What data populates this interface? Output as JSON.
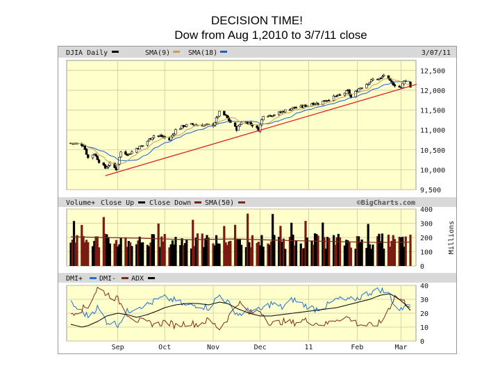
{
  "slide": {
    "title": "DECISION TIME!",
    "subtitle": "Dow from Aug 1,2010 to 3/7/11 close"
  },
  "colors": {
    "frame": "#999999",
    "header_bar": "#d9d9d9",
    "plot_bg": "#ffffcc",
    "grid": "#c9c9a0",
    "candles": "#000000",
    "candle_red": "#8b1a1a",
    "sma9": "#c8a050",
    "sma18": "#1f5fc8",
    "trendline": "#e02020",
    "vol_up": "#000000",
    "vol_down": "#7b1a12",
    "vol_sma50": "#7b2a1a",
    "dmi_plus": "#1f6fd0",
    "dmi_minus": "#7b2a1a",
    "adx": "#000000"
  },
  "chart_data": [
    {
      "type": "candlestick",
      "title": "DJIA Daily",
      "date_label": "3/07/11",
      "legend": [
        "DJIA Daily",
        "SMA(9)",
        "SMA(18)"
      ],
      "ylim": [
        9500,
        12750
      ],
      "y_ticks": [
        9500,
        10000,
        10500,
        11000,
        11500,
        12000,
        12500
      ],
      "y_tick_labels": [
        "9,500",
        "10,000",
        "10,500",
        "11,000",
        "11,500",
        "12,000",
        "12,500"
      ],
      "x_ticks": [
        "Sep",
        "Oct",
        "Nov",
        "Dec",
        "11",
        "Feb",
        "Mar"
      ],
      "x_tick_dates": [
        "2010-09-01",
        "2010-10-01",
        "2010-11-01",
        "2010-12-01",
        "2011-01-01",
        "2011-02-01",
        "2011-03-01"
      ],
      "x_range": [
        "2010-08-02",
        "2011-03-07"
      ],
      "close_series": [
        [
          "2010-08-02",
          10670
        ],
        [
          "2010-08-06",
          10650
        ],
        [
          "2010-08-10",
          10620
        ],
        [
          "2010-08-13",
          10300
        ],
        [
          "2010-08-17",
          10410
        ],
        [
          "2010-08-20",
          10210
        ],
        [
          "2010-08-24",
          10040
        ],
        [
          "2010-08-27",
          10150
        ],
        [
          "2010-08-31",
          10014
        ],
        [
          "2010-09-03",
          10450
        ],
        [
          "2010-09-08",
          10390
        ],
        [
          "2010-09-13",
          10540
        ],
        [
          "2010-09-17",
          10610
        ],
        [
          "2010-09-21",
          10760
        ],
        [
          "2010-09-24",
          10860
        ],
        [
          "2010-09-29",
          10840
        ],
        [
          "2010-10-04",
          10750
        ],
        [
          "2010-10-08",
          11000
        ],
        [
          "2010-10-13",
          11100
        ],
        [
          "2010-10-18",
          11140
        ],
        [
          "2010-10-22",
          11130
        ],
        [
          "2010-10-27",
          11120
        ],
        [
          "2010-11-01",
          11125
        ],
        [
          "2010-11-05",
          11440
        ],
        [
          "2010-11-09",
          11350
        ],
        [
          "2010-11-12",
          11190
        ],
        [
          "2010-11-16",
          11020
        ],
        [
          "2010-11-19",
          11200
        ],
        [
          "2010-11-24",
          11180
        ],
        [
          "2010-11-30",
          11000
        ],
        [
          "2010-12-03",
          11380
        ],
        [
          "2010-12-08",
          11370
        ],
        [
          "2010-12-13",
          11430
        ],
        [
          "2010-12-17",
          11490
        ],
        [
          "2010-12-22",
          11560
        ],
        [
          "2010-12-28",
          11580
        ],
        [
          "2011-01-03",
          11670
        ],
        [
          "2011-01-07",
          11670
        ],
        [
          "2011-01-12",
          11750
        ],
        [
          "2011-01-18",
          11840
        ],
        [
          "2011-01-21",
          11870
        ],
        [
          "2011-01-26",
          11980
        ],
        [
          "2011-01-28",
          11820
        ],
        [
          "2011-02-02",
          12040
        ],
        [
          "2011-02-07",
          12160
        ],
        [
          "2011-02-11",
          12270
        ],
        [
          "2011-02-16",
          12290
        ],
        [
          "2011-02-18",
          12390
        ],
        [
          "2011-02-22",
          12210
        ],
        [
          "2011-02-25",
          12130
        ],
        [
          "2011-03-01",
          12060
        ],
        [
          "2011-03-03",
          12260
        ],
        [
          "2011-03-07",
          12090
        ]
      ],
      "trendline": {
        "from": [
          "2010-08-24",
          9850
        ],
        "to": [
          "2011-03-11",
          12150
        ]
      }
    },
    {
      "type": "bar",
      "title": "Volume+",
      "legend": [
        "Close Up",
        "Close Down",
        "SMA(50)"
      ],
      "source": "©BigCharts.com",
      "units": "Millions",
      "ylim": [
        0,
        400
      ],
      "y_ticks": [
        0,
        100,
        200,
        300,
        400
      ],
      "y_tick_labels": [
        "0",
        "100",
        "200",
        "300",
        "400"
      ],
      "sma50": [
        [
          "2010-08-02",
          205
        ],
        [
          "2010-09-15",
          195
        ],
        [
          "2010-10-15",
          185
        ],
        [
          "2010-11-15",
          190
        ],
        [
          "2010-12-15",
          180
        ],
        [
          "2011-01-15",
          172
        ],
        [
          "2011-02-15",
          165
        ],
        [
          "2011-03-07",
          168
        ]
      ]
    },
    {
      "type": "line",
      "title": "DMI",
      "legend": [
        "DMI+",
        "DMI-",
        "ADX"
      ],
      "ylim": [
        0,
        40
      ],
      "y_ticks": [
        0,
        10,
        20,
        30,
        40
      ],
      "y_tick_labels": [
        "0",
        "10",
        "20",
        "30",
        "40"
      ],
      "series": [
        {
          "name": "DMI+",
          "color_key": "dmi_plus",
          "values": [
            [
              "2010-08-02",
              27
            ],
            [
              "2010-08-09",
              21
            ],
            [
              "2010-08-13",
              18
            ],
            [
              "2010-08-19",
              24
            ],
            [
              "2010-08-25",
              14
            ],
            [
              "2010-09-01",
              12
            ],
            [
              "2010-09-07",
              21
            ],
            [
              "2010-09-13",
              25
            ],
            [
              "2010-09-20",
              26
            ],
            [
              "2010-09-27",
              30
            ],
            [
              "2010-10-01",
              31
            ],
            [
              "2010-10-08",
              29
            ],
            [
              "2010-10-15",
              25
            ],
            [
              "2010-10-22",
              26
            ],
            [
              "2010-10-29",
              24
            ],
            [
              "2010-11-05",
              33
            ],
            [
              "2010-11-10",
              28
            ],
            [
              "2010-11-17",
              19
            ],
            [
              "2010-11-24",
              22
            ],
            [
              "2010-12-01",
              22
            ],
            [
              "2010-12-08",
              27
            ],
            [
              "2010-12-15",
              24
            ],
            [
              "2010-12-22",
              30
            ],
            [
              "2010-12-29",
              26
            ],
            [
              "2011-01-05",
              23
            ],
            [
              "2011-01-12",
              25
            ],
            [
              "2011-01-19",
              30
            ],
            [
              "2011-01-26",
              29
            ],
            [
              "2011-02-02",
              31
            ],
            [
              "2011-02-09",
              35
            ],
            [
              "2011-02-16",
              37
            ],
            [
              "2011-02-22",
              33
            ],
            [
              "2011-02-25",
              25
            ],
            [
              "2011-03-01",
              22
            ],
            [
              "2011-03-04",
              28
            ],
            [
              "2011-03-07",
              24
            ]
          ]
        },
        {
          "name": "DMI-",
          "color_key": "dmi_minus",
          "values": [
            [
              "2010-08-02",
              20
            ],
            [
              "2010-08-09",
              23
            ],
            [
              "2010-08-13",
              25
            ],
            [
              "2010-08-19",
              38
            ],
            [
              "2010-08-25",
              34
            ],
            [
              "2010-09-01",
              30
            ],
            [
              "2010-09-07",
              20
            ],
            [
              "2010-09-13",
              15
            ],
            [
              "2010-09-20",
              13
            ],
            [
              "2010-09-27",
              12
            ],
            [
              "2010-10-01",
              14
            ],
            [
              "2010-10-08",
              11
            ],
            [
              "2010-10-15",
              13
            ],
            [
              "2010-10-22",
              12
            ],
            [
              "2010-10-29",
              15
            ],
            [
              "2010-11-05",
              9
            ],
            [
              "2010-11-10",
              16
            ],
            [
              "2010-11-17",
              28
            ],
            [
              "2010-11-24",
              20
            ],
            [
              "2010-12-01",
              22
            ],
            [
              "2010-12-08",
              12
            ],
            [
              "2010-12-15",
              14
            ],
            [
              "2010-12-22",
              13
            ],
            [
              "2010-12-29",
              15
            ],
            [
              "2011-01-05",
              13
            ],
            [
              "2011-01-12",
              12
            ],
            [
              "2011-01-19",
              16
            ],
            [
              "2011-01-26",
              17
            ],
            [
              "2011-02-02",
              12
            ],
            [
              "2011-02-09",
              11
            ],
            [
              "2011-02-16",
              13
            ],
            [
              "2011-02-22",
              25
            ],
            [
              "2011-02-25",
              32
            ],
            [
              "2011-03-01",
              30
            ],
            [
              "2011-03-04",
              27
            ],
            [
              "2011-03-07",
              26
            ]
          ]
        },
        {
          "name": "ADX",
          "color_key": "adx",
          "values": [
            [
              "2010-08-02",
              12
            ],
            [
              "2010-08-09",
              10
            ],
            [
              "2010-08-13",
              11
            ],
            [
              "2010-08-19",
              14
            ],
            [
              "2010-08-25",
              18
            ],
            [
              "2010-09-01",
              20
            ],
            [
              "2010-09-07",
              19
            ],
            [
              "2010-09-13",
              17
            ],
            [
              "2010-09-20",
              19
            ],
            [
              "2010-09-27",
              22
            ],
            [
              "2010-10-01",
              24
            ],
            [
              "2010-10-08",
              26
            ],
            [
              "2010-10-15",
              27
            ],
            [
              "2010-10-22",
              27
            ],
            [
              "2010-10-29",
              26
            ],
            [
              "2010-11-05",
              28
            ],
            [
              "2010-11-10",
              27
            ],
            [
              "2010-11-17",
              23
            ],
            [
              "2010-11-24",
              20
            ],
            [
              "2010-12-01",
              18
            ],
            [
              "2010-12-08",
              18
            ],
            [
              "2010-12-15",
              19
            ],
            [
              "2010-12-22",
              20
            ],
            [
              "2010-12-29",
              21
            ],
            [
              "2011-01-05",
              22
            ],
            [
              "2011-01-12",
              23
            ],
            [
              "2011-01-19",
              24
            ],
            [
              "2011-01-26",
              26
            ],
            [
              "2011-02-02",
              28
            ],
            [
              "2011-02-09",
              30
            ],
            [
              "2011-02-16",
              33
            ],
            [
              "2011-02-22",
              34
            ],
            [
              "2011-02-25",
              32
            ],
            [
              "2011-03-01",
              29
            ],
            [
              "2011-03-04",
              26
            ],
            [
              "2011-03-07",
              22
            ]
          ]
        }
      ]
    }
  ]
}
